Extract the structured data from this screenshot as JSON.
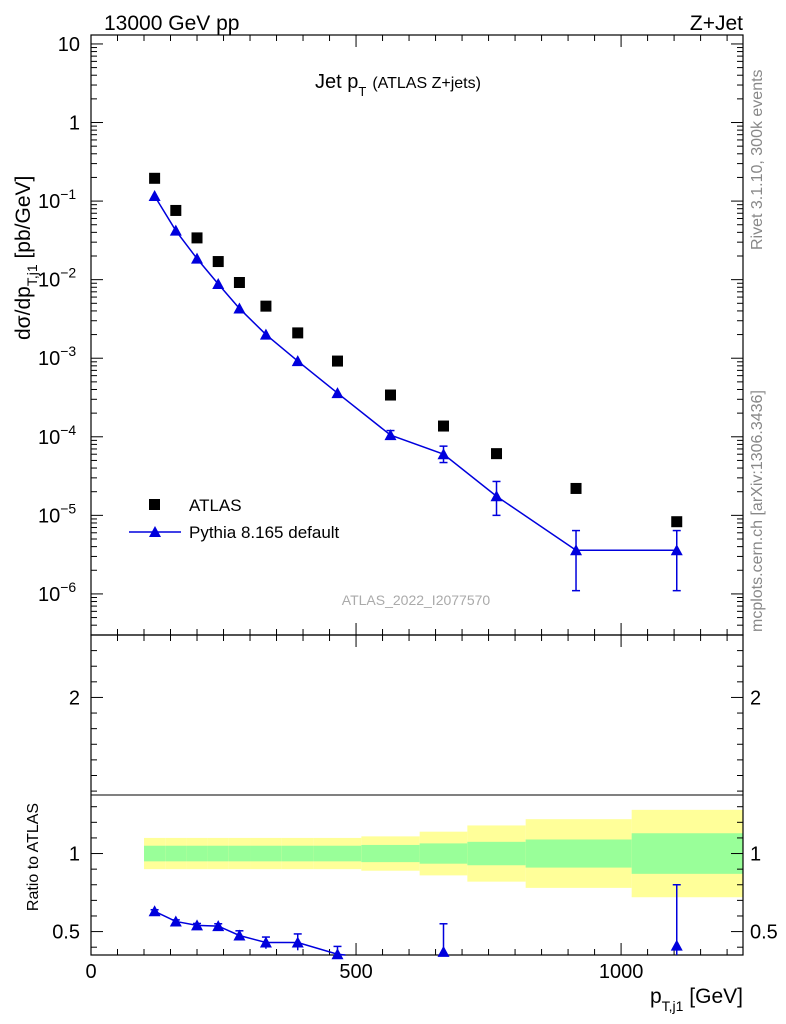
{
  "header": {
    "left": "13000 GeV pp",
    "right": "Z+Jet",
    "plot_title": "Jet p",
    "plot_title_sub": "T",
    "plot_title_extra": "(ATLAS Z+jets)",
    "analysis_id": "ATLAS_2022_I2077570",
    "side_rivet": "Rivet 3.1.10,  300k events",
    "side_mcplots": "mcplots.cern.ch [arXiv:1306.3436]"
  },
  "axes": {
    "ylabel_main": "dσ/dp",
    "ylabel_main_sub": "T,j1",
    "ylabel_main_unit": " [pb/GeV]",
    "ylabel_ratio": "Ratio to ATLAS",
    "xlabel": "p",
    "xlabel_sub": "T,j1",
    "xlabel_unit": " [GeV]",
    "main_yticks": [
      {
        "base": "10",
        "exp": ""
      },
      {
        "base": "1",
        "exp": ""
      },
      {
        "base": "10",
        "exp": "−1"
      },
      {
        "base": "10",
        "exp": "−2"
      },
      {
        "base": "10",
        "exp": "−3"
      },
      {
        "base": "10",
        "exp": "−4"
      },
      {
        "base": "10",
        "exp": "−5"
      },
      {
        "base": "10",
        "exp": "−6"
      }
    ],
    "ratio_yticks": [
      "2",
      "1",
      "0.5"
    ],
    "xticks": [
      "0",
      "500",
      "1000"
    ]
  },
  "legend": {
    "atlas": "ATLAS",
    "pythia": "Pythia 8.165 default"
  },
  "colors": {
    "mc": "#0000dd",
    "data": "#000000",
    "band_inner": "#99ff99",
    "band_outer": "#ffff99"
  },
  "chart_data": {
    "type": "scatter",
    "title": "Jet pT (ATLAS Z+jets)",
    "xlabel": "pT,j1 [GeV]",
    "ylabel": "dσ/dpT,j1 [pb/GeV]",
    "xlim": [
      0,
      1230
    ],
    "ylim_log": [
      3e-07,
      13
    ],
    "ratio_ylim": [
      0.35,
      2.4
    ],
    "series": [
      {
        "name": "ATLAS",
        "x": [
          120,
          160,
          200,
          240,
          280,
          330,
          390,
          465,
          565,
          665,
          765,
          915,
          1105
        ],
        "values": [
          0.195,
          0.076,
          0.034,
          0.017,
          0.0092,
          0.0046,
          0.0021,
          0.00092,
          0.00034,
          0.000137,
          6.1e-05,
          2.2e-05,
          8.3e-06
        ]
      },
      {
        "name": "Pythia 8.165 default",
        "x": [
          120,
          160,
          200,
          240,
          280,
          330,
          390,
          465,
          565,
          665,
          765,
          915,
          1105
        ],
        "values": [
          0.116,
          0.042,
          0.0185,
          0.0088,
          0.0043,
          0.002,
          0.00092,
          0.00036,
          0.000105,
          6e-05,
          1.75e-05,
          3.6e-06,
          3.6e-06
        ],
        "err_low": [
          0.003,
          0.001,
          0.0004,
          0.0002,
          0.0001,
          5e-05,
          2e-05,
          1e-05,
          1.2e-05,
          1.3e-05,
          7.5e-06,
          2.5e-06,
          2.5e-06
        ],
        "err_high": [
          0.003,
          0.001,
          0.0004,
          0.0002,
          0.0001,
          5e-05,
          2e-05,
          1e-05,
          1.5e-05,
          1.6e-05,
          9.5e-06,
          2.8e-06,
          2.8e-06
        ]
      }
    ],
    "ratio": {
      "x": [
        120,
        160,
        200,
        240,
        280,
        330,
        390,
        465,
        665,
        1105
      ],
      "values": [
        0.63,
        0.565,
        0.54,
        0.535,
        0.475,
        0.43,
        0.43,
        0.355,
        0.37,
        0.41
      ],
      "err_low": [
        0.01,
        0.01,
        0.012,
        0.015,
        0.03,
        0.04,
        0.05,
        0.05,
        0.08,
        0.1
      ],
      "err_high": [
        0.01,
        0.01,
        0.012,
        0.015,
        0.03,
        0.035,
        0.055,
        0.05,
        0.18,
        0.39
      ]
    },
    "bands": {
      "edges": [
        100,
        140,
        180,
        220,
        260,
        300,
        360,
        420,
        510,
        620,
        710,
        820,
        1020,
        1230
      ],
      "inner": [
        0.05,
        0.05,
        0.05,
        0.05,
        0.05,
        0.05,
        0.05,
        0.05,
        0.055,
        0.065,
        0.075,
        0.09,
        0.13
      ],
      "outer": [
        0.1,
        0.1,
        0.1,
        0.1,
        0.1,
        0.1,
        0.1,
        0.1,
        0.11,
        0.14,
        0.18,
        0.22,
        0.28
      ]
    }
  }
}
